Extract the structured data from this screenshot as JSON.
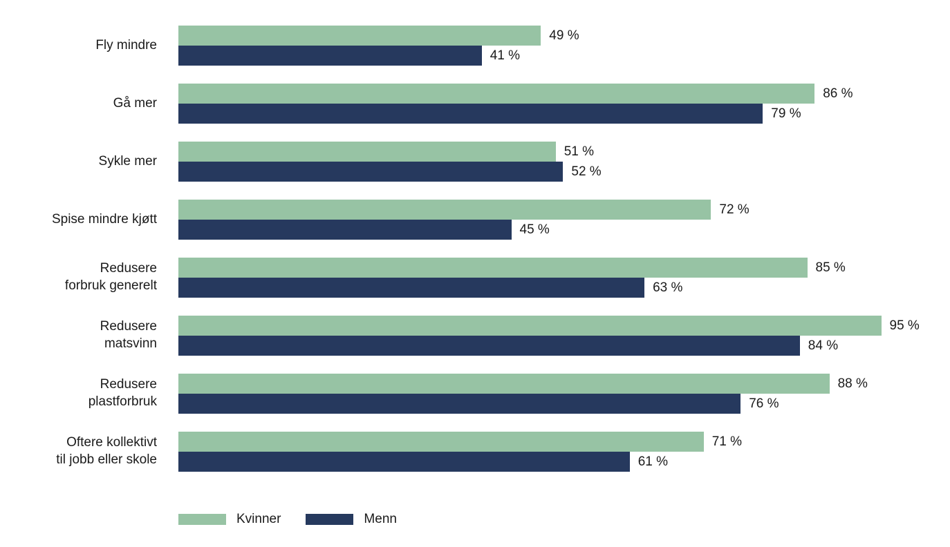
{
  "chart_data": {
    "type": "bar",
    "orientation": "horizontal",
    "title": "",
    "xlabel": "",
    "ylabel": "",
    "xlim": [
      0,
      100
    ],
    "grid": false,
    "legend_position": "bottom",
    "value_suffix": " %",
    "categories": [
      "Fly mindre",
      "Gå mer",
      "Sykle mer",
      "Spise mindre kjøtt",
      "Redusere forbruk generelt",
      "Redusere matsvinn",
      "Redusere plastforbruk",
      "Oftere kollektivt til jobb eller skole"
    ],
    "categories_display": [
      [
        "Fly mindre"
      ],
      [
        "Gå mer"
      ],
      [
        "Sykle mer"
      ],
      [
        "Spise mindre kjøtt"
      ],
      [
        "Redusere",
        "forbruk generelt"
      ],
      [
        "Redusere",
        "matsvinn"
      ],
      [
        "Redusere",
        "plastforbruk"
      ],
      [
        "Oftere kollektivt",
        "til jobb eller skole"
      ]
    ],
    "series": [
      {
        "name": "Kvinner",
        "color": "#97C3A4",
        "values": [
          49,
          86,
          51,
          72,
          85,
          95,
          88,
          71
        ]
      },
      {
        "name": "Menn",
        "color": "#26395E",
        "values": [
          41,
          79,
          52,
          45,
          63,
          84,
          76,
          61
        ]
      }
    ]
  },
  "legend": {
    "items": [
      {
        "label": "Kvinner",
        "color": "#97C3A4"
      },
      {
        "label": "Menn",
        "color": "#26395E"
      }
    ]
  },
  "colors": {
    "kvinner": "#97C3A4",
    "menn": "#26395E",
    "text": "#1a1a1a",
    "background": "#ffffff"
  }
}
